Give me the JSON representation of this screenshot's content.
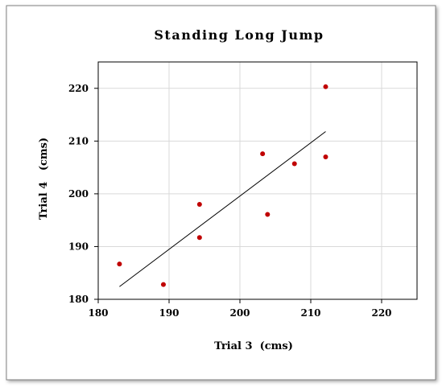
{
  "chart_data": {
    "type": "scatter",
    "title": "Standing Long Jump",
    "xlabel": "Trial 3  (cms)",
    "ylabel": "Trial 4   (cms)",
    "xlim": [
      180,
      225
    ],
    "ylim": [
      180,
      225
    ],
    "xticks": [
      180,
      190,
      200,
      210,
      220
    ],
    "yticks": [
      180,
      190,
      200,
      210,
      220
    ],
    "grid": true,
    "points": [
      {
        "x": 183,
        "y": 186.7
      },
      {
        "x": 189.2,
        "y": 182.8
      },
      {
        "x": 194.3,
        "y": 198
      },
      {
        "x": 194.3,
        "y": 191.7
      },
      {
        "x": 203.2,
        "y": 207.6
      },
      {
        "x": 203.9,
        "y": 196.1
      },
      {
        "x": 207.7,
        "y": 205.7
      },
      {
        "x": 212.1,
        "y": 220.3
      },
      {
        "x": 212.1,
        "y": 207
      }
    ],
    "trendline": {
      "x": [
        183,
        212.1
      ],
      "y": [
        182.4,
        211.8
      ]
    },
    "colors": {
      "points": "#c00000",
      "trendline": "#000000",
      "grid": "#d9d9d9",
      "plot_bg": "#ffffff"
    }
  }
}
